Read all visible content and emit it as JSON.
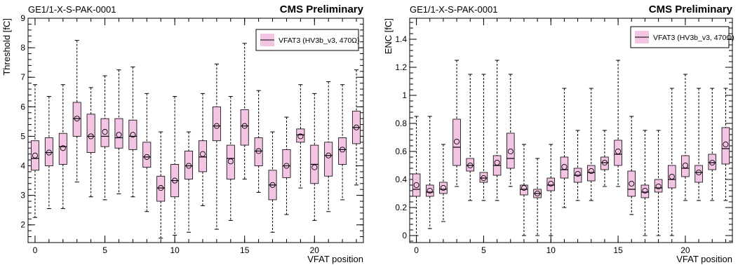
{
  "chart_data": [
    {
      "type": "box",
      "header_left": "GE1/1-X-S-PAK-0001",
      "header_right": "CMS Preliminary",
      "xlabel": "VFAT position",
      "ylabel": "Threshold [fC]",
      "xlim": [
        -0.5,
        23.5
      ],
      "ylim": [
        1.4,
        9.0
      ],
      "xticks": [
        0,
        5,
        10,
        15,
        20
      ],
      "xtick_labels": [
        "0",
        "5",
        "10",
        "15",
        "20"
      ],
      "yticks": [
        2,
        3,
        4,
        5,
        6,
        7,
        8,
        9
      ],
      "ytick_labels": [
        "2",
        "3",
        "4",
        "5",
        "6",
        "7",
        "8",
        "9"
      ],
      "legend": {
        "label": "VFAT3 (HV3b_v3, 470Ω)",
        "placement": "top-right"
      },
      "colors": {
        "box_fill": "#f4c4e4",
        "box_edge": "#000000"
      },
      "series": [
        {
          "x": [
            0,
            1,
            2,
            3,
            4,
            5,
            6,
            7,
            8,
            9,
            10,
            11,
            12,
            13,
            14,
            15,
            16,
            17,
            18,
            19,
            20,
            21,
            22,
            23
          ],
          "min": [
            2.25,
            2.55,
            2.55,
            3.45,
            2.95,
            2.85,
            3.05,
            2.95,
            2.45,
            1.55,
            1.65,
            1.75,
            2.65,
            1.85,
            2.15,
            3.55,
            3.1,
            1.75,
            2.35,
            3.25,
            2.15,
            2.45,
            2.85,
            3.35
          ],
          "q1": [
            3.85,
            4.0,
            4.05,
            5.0,
            4.45,
            4.65,
            4.6,
            4.55,
            3.95,
            2.8,
            2.95,
            3.55,
            3.8,
            4.85,
            3.55,
            4.7,
            4.0,
            2.85,
            3.6,
            4.8,
            3.4,
            3.65,
            4.05,
            4.75
          ],
          "median": [
            4.25,
            4.45,
            4.65,
            5.6,
            5.0,
            5.0,
            4.95,
            5.0,
            4.3,
            3.25,
            3.5,
            4.0,
            4.3,
            5.35,
            4.25,
            5.35,
            4.5,
            3.35,
            4.0,
            5.05,
            4.05,
            4.35,
            4.55,
            5.3
          ],
          "q3": [
            4.85,
            4.95,
            5.1,
            6.15,
            5.75,
            5.6,
            5.6,
            5.55,
            4.8,
            3.65,
            4.05,
            4.5,
            4.85,
            6.0,
            4.7,
            5.9,
            4.95,
            3.85,
            4.55,
            5.25,
            4.7,
            4.8,
            4.95,
            5.85
          ],
          "max": [
            6.75,
            6.35,
            6.75,
            8.25,
            6.65,
            7.05,
            7.25,
            7.35,
            6.45,
            5.15,
            6.35,
            5.15,
            6.45,
            7.45,
            6.35,
            8.15,
            6.55,
            5.15,
            5.65,
            6.75,
            6.45,
            6.85,
            6.75,
            7.25
          ],
          "mean": [
            4.35,
            4.45,
            4.6,
            5.6,
            5.0,
            5.15,
            5.05,
            5.05,
            4.3,
            3.25,
            3.5,
            4.0,
            4.4,
            5.35,
            4.15,
            5.35,
            4.5,
            3.35,
            4.0,
            5.0,
            3.95,
            4.35,
            4.55,
            5.3
          ]
        }
      ]
    },
    {
      "type": "box",
      "header_left": "GE1/1-X-S-PAK-0001",
      "header_right": "CMS Preliminary",
      "xlabel": "VFAT position",
      "ylabel": "ENC [fC]",
      "xlim": [
        -0.5,
        23.5
      ],
      "ylim": [
        -0.05,
        1.55
      ],
      "xticks": [
        0,
        5,
        10,
        15,
        20
      ],
      "xtick_labels": [
        "0",
        "5",
        "10",
        "15",
        "20"
      ],
      "yticks": [
        0,
        0.2,
        0.4,
        0.6,
        0.8,
        1.0,
        1.2,
        1.4
      ],
      "ytick_labels": [
        "0",
        "0.2",
        "0.4",
        "0.6",
        "0.8",
        "1",
        "1.2",
        "1.4"
      ],
      "legend": {
        "label": "VFAT3 (HV3b_v3, 470Ω)",
        "placement": "top-right"
      },
      "colors": {
        "box_fill": "#f4c4e4",
        "box_edge": "#000000"
      },
      "series": [
        {
          "x": [
            0,
            1,
            2,
            3,
            4,
            5,
            6,
            7,
            8,
            9,
            10,
            11,
            12,
            13,
            14,
            15,
            16,
            17,
            18,
            19,
            20,
            21,
            22,
            23
          ],
          "min": [
            0.0,
            0.05,
            0.1,
            0.35,
            0.25,
            0.25,
            0.25,
            0.35,
            0.0,
            0.0,
            0.0,
            0.2,
            0.25,
            0.25,
            0.35,
            0.35,
            0.15,
            0.0,
            0.0,
            0.0,
            0.25,
            0.25,
            0.25,
            0.25
          ],
          "q1": [
            0.28,
            0.28,
            0.3,
            0.5,
            0.46,
            0.38,
            0.43,
            0.48,
            0.29,
            0.27,
            0.32,
            0.41,
            0.38,
            0.39,
            0.47,
            0.5,
            0.28,
            0.27,
            0.31,
            0.34,
            0.42,
            0.38,
            0.47,
            0.51
          ],
          "median": [
            0.33,
            0.31,
            0.33,
            0.63,
            0.5,
            0.41,
            0.5,
            0.55,
            0.33,
            0.3,
            0.36,
            0.47,
            0.43,
            0.45,
            0.52,
            0.58,
            0.33,
            0.31,
            0.34,
            0.4,
            0.48,
            0.45,
            0.52,
            0.62
          ],
          "q3": [
            0.44,
            0.36,
            0.38,
            0.83,
            0.55,
            0.45,
            0.57,
            0.73,
            0.36,
            0.33,
            0.41,
            0.56,
            0.48,
            0.5,
            0.56,
            0.68,
            0.46,
            0.36,
            0.4,
            0.5,
            0.57,
            0.5,
            0.58,
            0.77
          ],
          "max": [
            0.85,
            0.85,
            0.65,
            1.25,
            1.15,
            1.15,
            1.25,
            1.15,
            0.65,
            0.55,
            0.65,
            1.05,
            0.75,
            1.05,
            0.75,
            1.25,
            0.85,
            0.75,
            0.75,
            1.05,
            1.15,
            1.05,
            1.05,
            1.05
          ],
          "mean": [
            0.36,
            0.32,
            0.34,
            0.67,
            0.5,
            0.41,
            0.52,
            0.6,
            0.34,
            0.3,
            0.37,
            0.49,
            0.44,
            0.46,
            0.52,
            0.6,
            0.37,
            0.32,
            0.35,
            0.42,
            0.5,
            0.45,
            0.52,
            0.65
          ]
        }
      ]
    }
  ]
}
